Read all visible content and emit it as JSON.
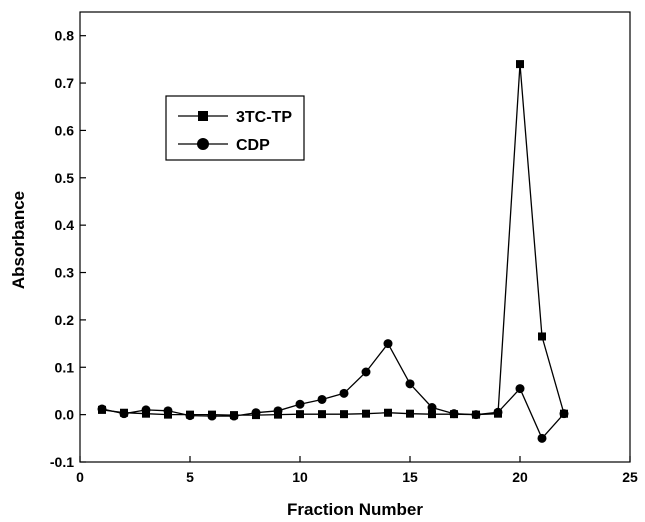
{
  "chart_data": {
    "type": "line",
    "xlabel": "Fraction Number",
    "ylabel": "Absorbance",
    "xlim": [
      0,
      25
    ],
    "ylim": [
      -0.1,
      0.85
    ],
    "xticks": [
      0,
      5,
      10,
      15,
      20,
      25
    ],
    "yticks": [
      -0.1,
      0.0,
      0.1,
      0.2,
      0.3,
      0.4,
      0.5,
      0.6,
      0.7,
      0.8
    ],
    "ytick_labels": [
      "-0.1",
      "0.0",
      "0.1",
      "0.2",
      "0.3",
      "0.4",
      "0.5",
      "0.6",
      "0.7",
      "0.8"
    ],
    "grid": false,
    "legend_position": "upper-left",
    "series": [
      {
        "name": "3TC-TP",
        "marker": "square",
        "x": [
          1,
          2,
          3,
          4,
          5,
          6,
          7,
          8,
          9,
          10,
          11,
          12,
          13,
          14,
          15,
          16,
          17,
          18,
          19,
          20,
          21,
          22
        ],
        "y": [
          0.01,
          0.004,
          0.002,
          0.0,
          0.0,
          0.0,
          -0.001,
          -0.001,
          0.0,
          0.001,
          0.001,
          0.001,
          0.002,
          0.004,
          0.002,
          0.001,
          0.001,
          0.0,
          0.002,
          0.74,
          0.165,
          0.002
        ]
      },
      {
        "name": "CDP",
        "marker": "circle",
        "x": [
          1,
          2,
          3,
          4,
          5,
          6,
          7,
          8,
          9,
          10,
          11,
          12,
          13,
          14,
          15,
          16,
          17,
          18,
          19,
          20,
          21,
          22
        ],
        "y": [
          0.012,
          0.002,
          0.01,
          0.008,
          -0.002,
          -0.003,
          -0.003,
          0.004,
          0.008,
          0.022,
          0.032,
          0.045,
          0.09,
          0.15,
          0.065,
          0.015,
          0.002,
          0.0,
          0.005,
          0.055,
          -0.05,
          0.002
        ]
      }
    ]
  }
}
